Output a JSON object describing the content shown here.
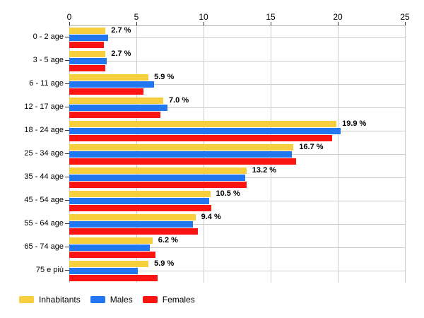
{
  "chart_data": {
    "type": "bar",
    "orientation": "horizontal",
    "title": "",
    "xlabel": "",
    "ylabel": "",
    "xlim": [
      0,
      25
    ],
    "x_ticks": [
      "0",
      "5",
      "10",
      "15",
      "20",
      "25"
    ],
    "grid": true,
    "legend_position": "bottom-left",
    "categories": [
      "0 - 2 age",
      "3 - 5 age",
      "6 - 11 age",
      "12 - 17 age",
      "18 - 24 age",
      "25 - 34 age",
      "35 - 44 age",
      "45 - 54 age",
      "55 - 64 age",
      "65 - 74 age",
      "75 e più"
    ],
    "series": [
      {
        "name": "Inhabitants",
        "color": "#F6CE3E",
        "values": [
          2.7,
          2.7,
          5.9,
          7.0,
          19.9,
          16.7,
          13.2,
          10.5,
          9.4,
          6.2,
          5.9
        ]
      },
      {
        "name": "Males",
        "color": "#2277F0",
        "values": [
          2.9,
          2.8,
          6.3,
          7.3,
          20.2,
          16.6,
          13.1,
          10.4,
          9.2,
          6.0,
          5.1
        ]
      },
      {
        "name": "Females",
        "color": "#FC1413",
        "values": [
          2.6,
          2.7,
          5.5,
          6.8,
          19.6,
          16.9,
          13.2,
          10.6,
          9.6,
          6.4,
          6.6
        ]
      }
    ],
    "value_labels": [
      "2.7 %",
      "2.7 %",
      "5.9 %",
      "7.0 %",
      "19.9 %",
      "16.7 %",
      "13.2 %",
      "10.5 %",
      "9.4 %",
      "6.2 %",
      "5.9 %"
    ],
    "colors": {
      "gridline": "#cccccc",
      "axis_line": "#b0b0b0",
      "tick": "#333333",
      "text": "#000000",
      "background": "#ffffff"
    }
  }
}
